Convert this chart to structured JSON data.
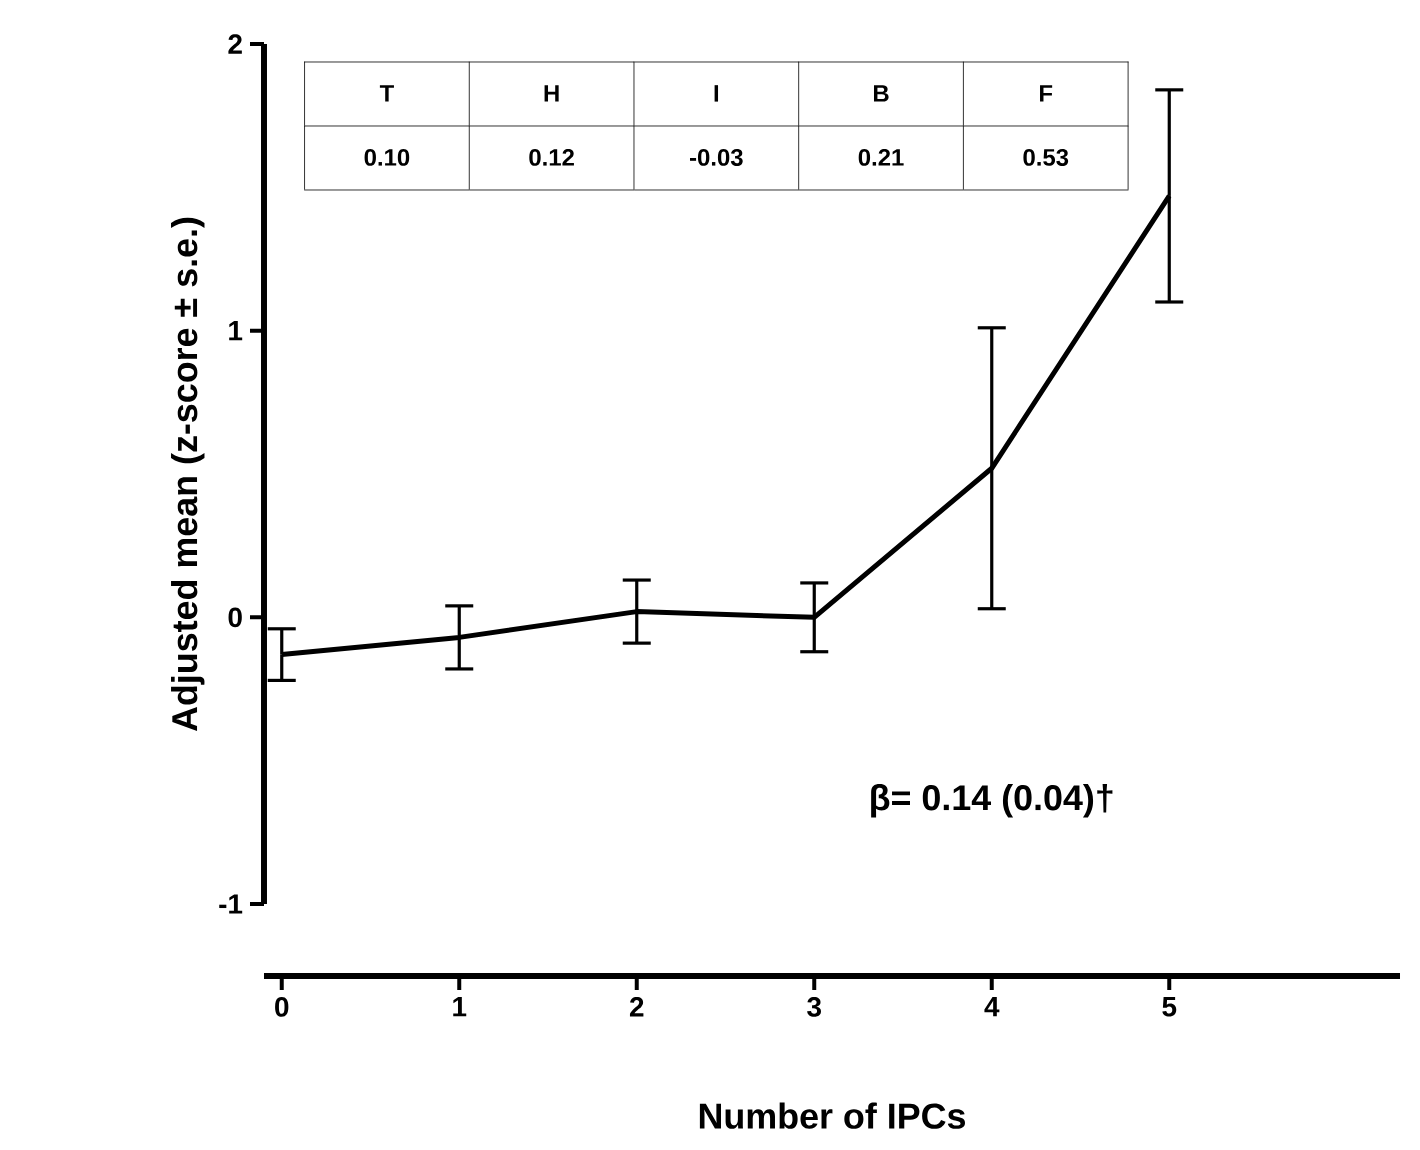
{
  "chart_data": {
    "type": "line",
    "xlabel": "Number of IPCs",
    "ylabel": "Adjusted mean (z-score ± s.e.)",
    "x": [
      0,
      1,
      2,
      3,
      4,
      5
    ],
    "values": [
      -0.13,
      -0.07,
      0.02,
      0.0,
      0.52,
      1.47
    ],
    "errors": [
      0.09,
      0.11,
      0.11,
      0.12,
      0.49,
      0.37
    ],
    "color": "#000000",
    "marker": "none",
    "line_style": "solid",
    "xlim": [
      -0.1,
      6.3
    ],
    "xticks": [
      0,
      1,
      2,
      3,
      4,
      5
    ],
    "ylim": [
      -1,
      2
    ],
    "yticks": [
      -1,
      0,
      1,
      2
    ],
    "annotations": [
      "T",
      "H",
      "I",
      "B",
      "F",
      "0.10",
      "0.12",
      "-0.03",
      "0.21",
      "0.53",
      "β= 0.14 (0.04)†"
    ]
  }
}
